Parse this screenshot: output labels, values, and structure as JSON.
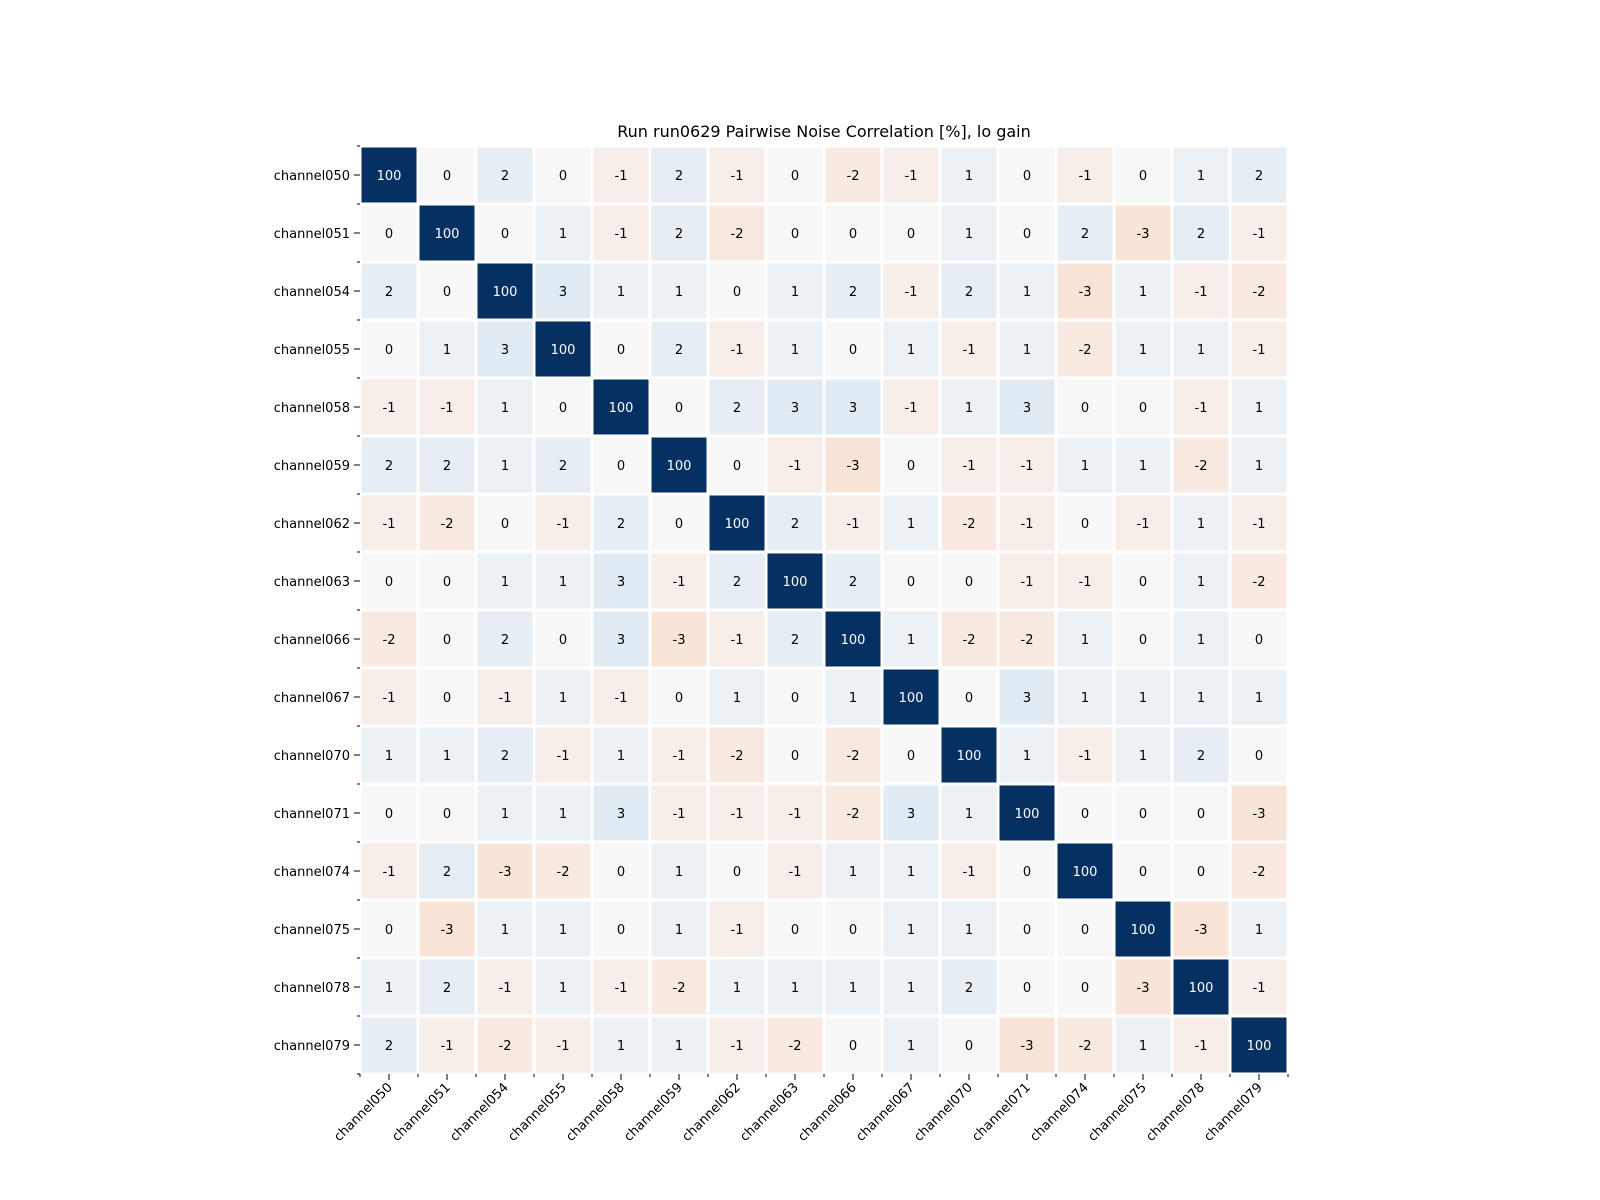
{
  "chart_data": {
    "type": "heatmap",
    "title": "Run run0629 Pairwise Noise Correlation [%], lo gain",
    "xlabel": "",
    "ylabel": "",
    "categories": [
      "channel050",
      "channel051",
      "channel054",
      "channel055",
      "channel058",
      "channel059",
      "channel062",
      "channel063",
      "channel066",
      "channel067",
      "channel070",
      "channel071",
      "channel074",
      "channel075",
      "channel078",
      "channel079"
    ],
    "values": [
      [
        100,
        0,
        2,
        0,
        -1,
        2,
        -1,
        0,
        -2,
        -1,
        1,
        0,
        -1,
        0,
        1,
        2
      ],
      [
        0,
        100,
        0,
        1,
        -1,
        2,
        -2,
        0,
        0,
        0,
        1,
        0,
        2,
        -3,
        2,
        -1
      ],
      [
        2,
        0,
        100,
        3,
        1,
        1,
        0,
        1,
        2,
        -1,
        2,
        1,
        -3,
        1,
        -1,
        -2
      ],
      [
        0,
        1,
        3,
        100,
        0,
        2,
        -1,
        1,
        0,
        1,
        -1,
        1,
        -2,
        1,
        1,
        -1
      ],
      [
        -1,
        -1,
        1,
        0,
        100,
        0,
        2,
        3,
        3,
        -1,
        1,
        3,
        0,
        0,
        -1,
        1
      ],
      [
        2,
        2,
        1,
        2,
        0,
        100,
        0,
        -1,
        -3,
        0,
        -1,
        -1,
        1,
        1,
        -2,
        1
      ],
      [
        -1,
        -2,
        0,
        -1,
        2,
        0,
        100,
        2,
        -1,
        1,
        -2,
        -1,
        0,
        -1,
        1,
        -1
      ],
      [
        0,
        0,
        1,
        1,
        3,
        -1,
        2,
        100,
        2,
        0,
        0,
        -1,
        -1,
        0,
        1,
        -2
      ],
      [
        -2,
        0,
        2,
        0,
        3,
        -3,
        -1,
        2,
        100,
        1,
        -2,
        -2,
        1,
        0,
        1,
        0
      ],
      [
        -1,
        0,
        -1,
        1,
        -1,
        0,
        1,
        0,
        1,
        100,
        0,
        3,
        1,
        1,
        1,
        1
      ],
      [
        1,
        1,
        2,
        -1,
        1,
        -1,
        -2,
        0,
        -2,
        0,
        100,
        1,
        -1,
        1,
        2,
        0
      ],
      [
        0,
        0,
        1,
        1,
        3,
        -1,
        -1,
        -1,
        -2,
        3,
        1,
        100,
        0,
        0,
        0,
        -3
      ],
      [
        -1,
        2,
        -3,
        -2,
        0,
        1,
        0,
        -1,
        1,
        1,
        -1,
        0,
        100,
        0,
        0,
        -2
      ],
      [
        0,
        -3,
        1,
        1,
        0,
        1,
        -1,
        0,
        0,
        1,
        1,
        0,
        0,
        100,
        -3,
        1
      ],
      [
        1,
        2,
        -1,
        1,
        -1,
        -2,
        1,
        1,
        1,
        1,
        2,
        0,
        0,
        -3,
        100,
        -1
      ],
      [
        2,
        -1,
        -2,
        -1,
        1,
        1,
        -1,
        -2,
        0,
        1,
        0,
        -3,
        -2,
        1,
        -1,
        100
      ]
    ],
    "colormap": "diverging red-blue",
    "colors": {
      "positive_max": "#053061",
      "neutral": "#f7f7f7",
      "negative_max": "#67001f",
      "gap": "#ffffff",
      "text_light": "#ffffff",
      "text_dark": "#000000"
    },
    "legend": "none",
    "grid": false
  }
}
